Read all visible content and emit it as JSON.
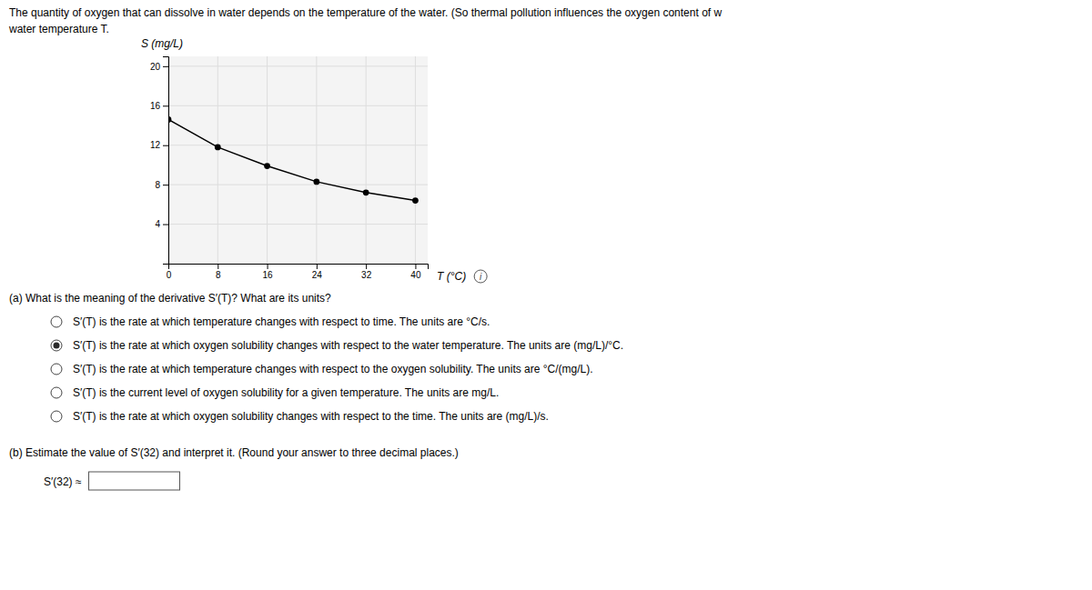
{
  "chart_data": {
    "type": "line",
    "x_label": "T (°C)",
    "y_label": "S (mg/L)",
    "x": [
      0,
      8,
      16,
      24,
      32,
      40
    ],
    "values": [
      14.6,
      11.8,
      9.9,
      8.3,
      7.2,
      6.4
    ],
    "xlim": [
      0,
      42
    ],
    "ylim": [
      0,
      21
    ],
    "xticks": [
      0,
      8,
      16,
      24,
      32,
      40
    ],
    "yticks": [
      4,
      8,
      12,
      16,
      20
    ],
    "grid": true,
    "color": "#000000",
    "marker": "circle"
  },
  "page": {
    "header": [
      "The quantity of oxygen that can dissolve in water depends on the temperature of the water. (So thermal pollution influences the oxygen content of w",
      "water temperature T."
    ],
    "info_label": "i",
    "part_a": {
      "question": "(a)  What is the meaning of the derivative S′(T)? What are its units?",
      "options": [
        {
          "selected": false,
          "text": "S′(T) is the rate at which temperature changes with respect to time. The units are °C/s."
        },
        {
          "selected": true,
          "text": "S′(T) is the rate at which oxygen solubility changes with respect to the water temperature. The units are (mg/L)/°C."
        },
        {
          "selected": false,
          "text": "S′(T) is the rate at which temperature changes with respect to the oxygen solubility. The units are °C/(mg/L)."
        },
        {
          "selected": false,
          "text": "S′(T) is the current level of oxygen solubility for a given temperature. The units are mg/L."
        },
        {
          "selected": false,
          "text": "S′(T) is the rate at which oxygen solubility changes with respect to the time. The units are (mg/L)/s."
        }
      ]
    },
    "part_b": {
      "question": "(b)  Estimate the value of S′(32) and interpret it. (Round your answer to three decimal places.)",
      "label": "S′(32) ≈"
    }
  }
}
